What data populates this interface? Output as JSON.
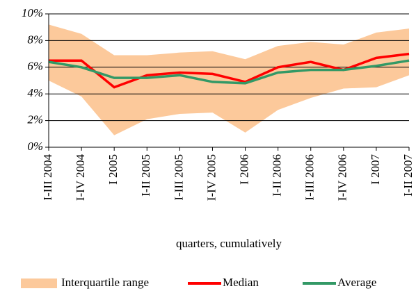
{
  "chart_data": {
    "type": "line",
    "x_label": "quarters, cumulatively",
    "categories": [
      "I-III 2004",
      "I-IV 2004",
      "I 2005",
      "I-II 2005",
      "I-III 2005",
      "I-IV 2005",
      "I 2006",
      "I-II 2006",
      "I-III 2006",
      "I-IV 2006",
      "I 2007",
      "I-II 2007"
    ],
    "ylim": [
      0,
      10
    ],
    "yticks": [
      {
        "value": 0,
        "label": "0%"
      },
      {
        "value": 2,
        "label": "2%"
      },
      {
        "value": 4,
        "label": "4%"
      },
      {
        "value": 6,
        "label": "6%"
      },
      {
        "value": 8,
        "label": "8%"
      },
      {
        "value": 10,
        "label": "10%"
      }
    ],
    "grid": true,
    "legend": "bottom",
    "series": [
      {
        "name": "Interquartile range",
        "color": "#fcc99b",
        "type": "band",
        "upper": [
          9.2,
          8.5,
          6.9,
          6.9,
          7.1,
          7.2,
          6.6,
          7.6,
          7.9,
          7.7,
          8.6,
          8.9
        ],
        "lower": [
          5.0,
          3.8,
          0.9,
          2.1,
          2.5,
          2.6,
          1.1,
          2.8,
          3.7,
          4.4,
          4.5,
          5.4
        ]
      },
      {
        "name": "Median",
        "color": "#ff0000",
        "values": [
          6.5,
          6.5,
          4.5,
          5.4,
          5.6,
          5.5,
          4.9,
          6.0,
          6.4,
          5.8,
          6.7,
          7.0
        ]
      },
      {
        "name": "Average",
        "color": "#339966",
        "values": [
          6.4,
          6.0,
          5.2,
          5.2,
          5.4,
          4.9,
          4.8,
          5.6,
          5.8,
          5.8,
          6.1,
          6.5
        ]
      }
    ]
  }
}
